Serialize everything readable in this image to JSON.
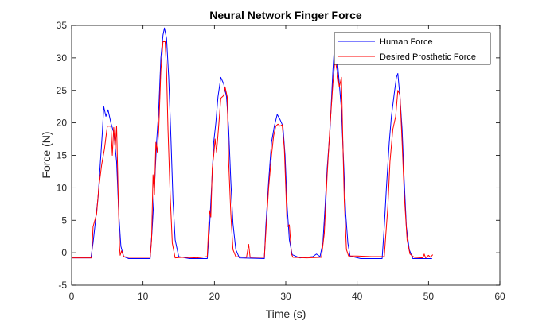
{
  "chart_data": {
    "type": "line",
    "title": "Neural Network Finger Force",
    "xlabel": "Time (s)",
    "ylabel": "Force (N)",
    "xlim": [
      0,
      60
    ],
    "ylim": [
      -5,
      35
    ],
    "xticks": [
      0,
      10,
      20,
      30,
      40,
      50,
      60
    ],
    "yticks": [
      -5,
      0,
      5,
      10,
      15,
      20,
      25,
      30,
      35
    ],
    "grid": false,
    "legend_position": "top-right",
    "series": [
      {
        "name": "Human Force",
        "color": "#0000ff",
        "points": [
          [
            0,
            -0.8
          ],
          [
            2.7,
            -0.8
          ],
          [
            3.0,
            1.5
          ],
          [
            3.3,
            4.5
          ],
          [
            3.7,
            8.5
          ],
          [
            4.0,
            13.5
          ],
          [
            4.3,
            18.5
          ],
          [
            4.5,
            22.5
          ],
          [
            4.8,
            21.0
          ],
          [
            5.1,
            22.0
          ],
          [
            5.5,
            20.0
          ],
          [
            5.9,
            18.5
          ],
          [
            6.3,
            14.0
          ],
          [
            6.6,
            6.0
          ],
          [
            6.9,
            1.0
          ],
          [
            7.3,
            -0.6
          ],
          [
            8.0,
            -0.9
          ],
          [
            11.0,
            -0.9
          ],
          [
            11.3,
            4.0
          ],
          [
            11.6,
            10.0
          ],
          [
            11.9,
            17.0
          ],
          [
            12.2,
            22.0
          ],
          [
            12.5,
            30.0
          ],
          [
            12.8,
            33.5
          ],
          [
            13.0,
            34.6
          ],
          [
            13.3,
            33.0
          ],
          [
            13.6,
            27.0
          ],
          [
            13.9,
            18.0
          ],
          [
            14.2,
            8.0
          ],
          [
            14.5,
            2.0
          ],
          [
            15.0,
            -0.6
          ],
          [
            16.5,
            -0.9
          ],
          [
            19.0,
            -0.9
          ],
          [
            19.3,
            3.5
          ],
          [
            19.6,
            10.0
          ],
          [
            19.9,
            17.0
          ],
          [
            20.2,
            20.0
          ],
          [
            20.5,
            24.0
          ],
          [
            20.9,
            27.0
          ],
          [
            21.3,
            26.0
          ],
          [
            21.7,
            24.0
          ],
          [
            22.0,
            19.0
          ],
          [
            22.3,
            11.0
          ],
          [
            22.6,
            4.5
          ],
          [
            23.0,
            0.5
          ],
          [
            23.5,
            -0.8
          ],
          [
            27.0,
            -0.9
          ],
          [
            27.2,
            4.0
          ],
          [
            27.6,
            11.0
          ],
          [
            28.0,
            17.0
          ],
          [
            28.4,
            19.5
          ],
          [
            28.8,
            21.3
          ],
          [
            29.2,
            20.5
          ],
          [
            29.6,
            19.5
          ],
          [
            29.9,
            15.0
          ],
          [
            30.2,
            7.0
          ],
          [
            30.5,
            2.0
          ],
          [
            30.9,
            -0.3
          ],
          [
            32.0,
            -0.8
          ],
          [
            33.8,
            -0.6
          ],
          [
            34.3,
            -0.2
          ],
          [
            34.8,
            -0.6
          ],
          [
            35.2,
            1.5
          ],
          [
            35.5,
            7.0
          ],
          [
            35.8,
            13.0
          ],
          [
            36.2,
            19.0
          ],
          [
            36.6,
            28.0
          ],
          [
            36.9,
            33.2
          ],
          [
            37.2,
            30.0
          ],
          [
            37.5,
            26.0
          ],
          [
            37.8,
            22.0
          ],
          [
            38.1,
            14.0
          ],
          [
            38.4,
            6.0
          ],
          [
            38.7,
            1.5
          ],
          [
            39.0,
            -0.5
          ],
          [
            40.5,
            -0.9
          ],
          [
            43.5,
            -0.9
          ],
          [
            43.8,
            4.0
          ],
          [
            44.1,
            10.0
          ],
          [
            44.5,
            17.0
          ],
          [
            44.8,
            21.0
          ],
          [
            45.2,
            24.5
          ],
          [
            45.5,
            27.0
          ],
          [
            45.7,
            27.6
          ],
          [
            46.0,
            24.0
          ],
          [
            46.3,
            19.0
          ],
          [
            46.6,
            11.0
          ],
          [
            46.9,
            4.0
          ],
          [
            47.3,
            0.5
          ],
          [
            47.8,
            -0.9
          ],
          [
            50.5,
            -0.9
          ]
        ]
      },
      {
        "name": "Desired Prosthetic Force",
        "color": "#ff0000",
        "points": [
          [
            0,
            -0.8
          ],
          [
            2.8,
            -0.8
          ],
          [
            3.0,
            4.0
          ],
          [
            3.5,
            6.0
          ],
          [
            3.8,
            10.0
          ],
          [
            4.2,
            13.5
          ],
          [
            4.6,
            16.0
          ],
          [
            5.0,
            19.5
          ],
          [
            5.5,
            19.5
          ],
          [
            5.7,
            15.0
          ],
          [
            5.9,
            19.3
          ],
          [
            6.1,
            16.0
          ],
          [
            6.3,
            19.5
          ],
          [
            6.5,
            10.0
          ],
          [
            6.7,
            1.0
          ],
          [
            6.8,
            -0.4
          ],
          [
            7.0,
            0.3
          ],
          [
            7.3,
            -0.6
          ],
          [
            8.0,
            -0.7
          ],
          [
            11.0,
            -0.7
          ],
          [
            11.2,
            2.0
          ],
          [
            11.4,
            12.0
          ],
          [
            11.6,
            9.0
          ],
          [
            11.8,
            17.0
          ],
          [
            12.0,
            15.5
          ],
          [
            12.2,
            19.0
          ],
          [
            12.5,
            28.0
          ],
          [
            12.8,
            32.5
          ],
          [
            13.1,
            32.5
          ],
          [
            13.3,
            28.0
          ],
          [
            13.5,
            19.0
          ],
          [
            13.8,
            9.0
          ],
          [
            14.1,
            1.5
          ],
          [
            14.5,
            -0.8
          ],
          [
            15.5,
            -0.7
          ],
          [
            17.5,
            -0.8
          ],
          [
            19.0,
            -0.6
          ],
          [
            19.3,
            6.5
          ],
          [
            19.5,
            5.5
          ],
          [
            19.7,
            13.0
          ],
          [
            19.9,
            15.0
          ],
          [
            20.1,
            17.5
          ],
          [
            20.3,
            15.5
          ],
          [
            20.6,
            19.5
          ],
          [
            20.9,
            23.8
          ],
          [
            21.3,
            24.2
          ],
          [
            21.5,
            25.5
          ],
          [
            21.8,
            24.0
          ],
          [
            22.0,
            14.0
          ],
          [
            22.3,
            6.0
          ],
          [
            22.6,
            0.5
          ],
          [
            23.0,
            -0.6
          ],
          [
            24.5,
            -0.7
          ],
          [
            24.8,
            1.3
          ],
          [
            25.0,
            -0.7
          ],
          [
            27.0,
            -0.7
          ],
          [
            27.2,
            3.0
          ],
          [
            27.6,
            10.0
          ],
          [
            28.0,
            15.0
          ],
          [
            28.3,
            18.0
          ],
          [
            28.6,
            19.5
          ],
          [
            28.9,
            19.8
          ],
          [
            29.2,
            19.5
          ],
          [
            29.5,
            19.7
          ],
          [
            29.8,
            16.0
          ],
          [
            30.0,
            10.0
          ],
          [
            30.2,
            4.0
          ],
          [
            30.5,
            4.3
          ],
          [
            30.8,
            -0.2
          ],
          [
            31.0,
            -0.7
          ],
          [
            33.0,
            -0.8
          ],
          [
            35.0,
            -0.7
          ],
          [
            35.4,
            3.0
          ],
          [
            35.8,
            12.0
          ],
          [
            36.2,
            19.5
          ],
          [
            36.6,
            26.0
          ],
          [
            36.9,
            29.8
          ],
          [
            37.2,
            28.0
          ],
          [
            37.5,
            25.5
          ],
          [
            37.8,
            27.0
          ],
          [
            38.0,
            17.0
          ],
          [
            38.2,
            8.0
          ],
          [
            38.5,
            0.5
          ],
          [
            38.8,
            -0.5
          ],
          [
            40.0,
            -0.5
          ],
          [
            42.0,
            -0.6
          ],
          [
            43.8,
            -0.6
          ],
          [
            44.0,
            2.5
          ],
          [
            44.3,
            7.0
          ],
          [
            44.6,
            14.0
          ],
          [
            45.0,
            19.0
          ],
          [
            45.4,
            21.0
          ],
          [
            45.7,
            25.0
          ],
          [
            46.0,
            24.3
          ],
          [
            46.3,
            17.0
          ],
          [
            46.6,
            9.0
          ],
          [
            47.0,
            2.0
          ],
          [
            47.4,
            -0.2
          ],
          [
            48.0,
            -0.7
          ],
          [
            49.2,
            -0.8
          ],
          [
            49.4,
            -0.2
          ],
          [
            49.6,
            -0.8
          ],
          [
            50.0,
            -0.4
          ],
          [
            50.3,
            -0.7
          ],
          [
            50.6,
            -0.3
          ]
        ]
      }
    ]
  }
}
